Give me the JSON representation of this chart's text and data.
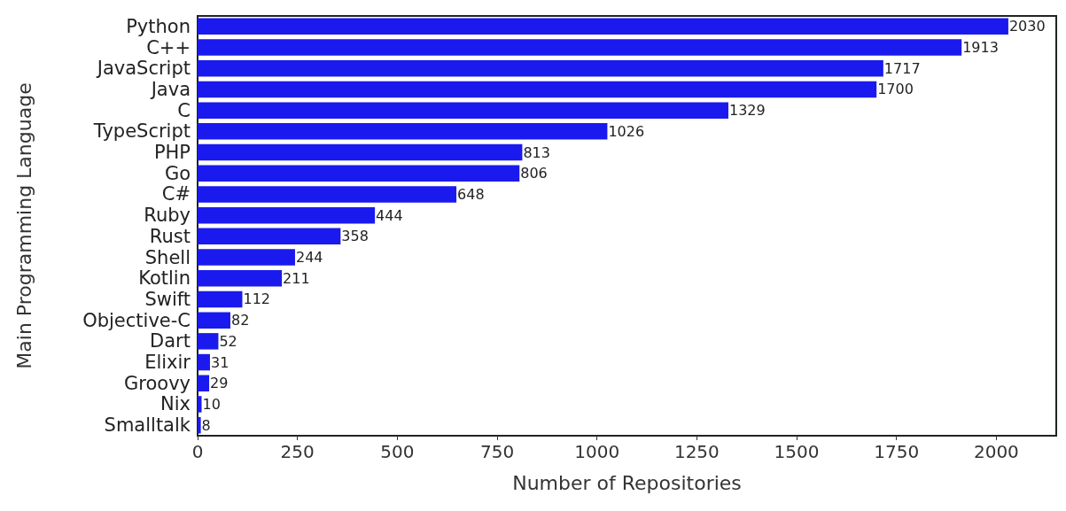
{
  "chart_data": {
    "type": "bar",
    "orientation": "horizontal",
    "xlabel": "Number of Repositories",
    "ylabel": "Main Programming Language",
    "categories": [
      "Python",
      "C++",
      "JavaScript",
      "Java",
      "C",
      "TypeScript",
      "PHP",
      "Go",
      "C#",
      "Ruby",
      "Rust",
      "Shell",
      "Kotlin",
      "Swift",
      "Objective-C",
      "Dart",
      "Elixir",
      "Groovy",
      "Nix",
      "Smalltalk"
    ],
    "values": [
      2030,
      1913,
      1717,
      1700,
      1329,
      1026,
      813,
      806,
      648,
      444,
      358,
      244,
      211,
      112,
      82,
      52,
      31,
      29,
      10,
      8
    ],
    "color": "#1a1aee",
    "xlim": [
      0,
      2150
    ],
    "xticks": [
      0,
      250,
      500,
      750,
      1000,
      1250,
      1500,
      1750,
      2000
    ],
    "grid": false,
    "data_labels": true
  }
}
